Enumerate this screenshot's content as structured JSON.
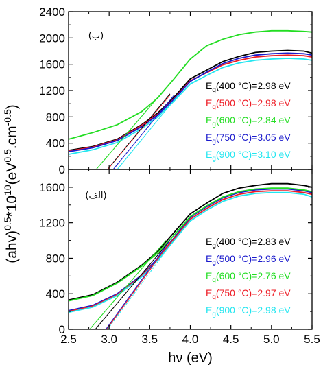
{
  "chart_data": {
    "type": "line",
    "xlabel": "hν (eV)",
    "ylabel": "(ahv)^0.5*10^10",
    "ylabel_right_suffix": "(eV^0.5.cm^-0.5)",
    "panels": [
      {
        "tag": "(ب)",
        "ylim": [
          0,
          2400
        ],
        "xlim": [
          2.5,
          5.5
        ],
        "yticks": [
          0,
          400,
          800,
          1200,
          1600,
          2000,
          2400
        ],
        "series": [
          {
            "name": "Eg(400 °C)=2.98 eV",
            "label_main": "E",
            "label_sub": "g",
            "label_rest": "(400 °C)=2.98 eV",
            "color": "#000000",
            "x": [
              2.5,
              2.8,
              3.1,
              3.4,
              3.6,
              3.8,
              4.0,
              4.2,
              4.4,
              4.6,
              4.8,
              5.0,
              5.2,
              5.4,
              5.5
            ],
            "y": [
              290,
              350,
              460,
              680,
              860,
              1100,
              1380,
              1510,
              1640,
              1720,
              1780,
              1800,
              1810,
              1800,
              1770
            ]
          },
          {
            "name": "Eg(500 °C)=2.98 eV",
            "label_main": "E",
            "label_sub": "g",
            "label_rest": "(500 °C)=2.98 eV",
            "color": "#ee1c25",
            "x": [
              2.5,
              2.8,
              3.1,
              3.4,
              3.6,
              3.8,
              4.0,
              4.2,
              4.4,
              4.6,
              4.8,
              5.0,
              5.2,
              5.4,
              5.5
            ],
            "y": [
              280,
              340,
              450,
              670,
              840,
              1080,
              1350,
              1470,
              1590,
              1660,
              1710,
              1730,
              1740,
              1730,
              1710
            ]
          },
          {
            "name": "Eg(600 °C)=2.84 eV",
            "label_main": "E",
            "label_sub": "g",
            "label_rest": "(600 °C)=2.84 eV",
            "color": "#22dd22",
            "x": [
              2.5,
              2.8,
              3.1,
              3.4,
              3.6,
              3.8,
              4.0,
              4.2,
              4.4,
              4.6,
              4.8,
              5.0,
              5.2,
              5.4,
              5.5
            ],
            "y": [
              460,
              560,
              680,
              880,
              1090,
              1380,
              1680,
              1880,
              1980,
              2050,
              2090,
              2110,
              2110,
              2100,
              2090
            ]
          },
          {
            "name": "Eg(750 °C)=3.05 eV",
            "label_main": "E",
            "label_sub": "g",
            "label_rest": "(750 °C)=3.05 eV",
            "color": "#1a1acc",
            "x": [
              2.5,
              2.8,
              3.1,
              3.4,
              3.6,
              3.8,
              4.0,
              4.2,
              4.4,
              4.6,
              4.8,
              5.0,
              5.2,
              5.4,
              5.5
            ],
            "y": [
              270,
              330,
              440,
              650,
              830,
              1070,
              1340,
              1480,
              1610,
              1690,
              1740,
              1760,
              1770,
              1760,
              1740
            ]
          },
          {
            "name": "Eg(900 °C)=3.10 eV",
            "label_main": "E",
            "label_sub": "g",
            "label_rest": "(900 °C)=3.10 eV",
            "color": "#22e6f0",
            "x": [
              2.5,
              2.8,
              3.1,
              3.4,
              3.6,
              3.8,
              4.0,
              4.2,
              4.4,
              4.6,
              4.8,
              5.0,
              5.2,
              5.4,
              5.5
            ],
            "y": [
              230,
              300,
              410,
              620,
              800,
              1040,
              1300,
              1430,
              1550,
              1620,
              1660,
              1680,
              1690,
              1680,
              1660
            ]
          }
        ],
        "fits": [
          {
            "color": "#000000",
            "x": [
              2.98,
              3.75
            ],
            "y": [
              0,
              1150
            ]
          },
          {
            "color": "#22dd22",
            "x": [
              2.84,
              3.7
            ],
            "y": [
              0,
              1240
            ]
          },
          {
            "color": "#1a1acc",
            "x": [
              3.05,
              3.8
            ],
            "y": [
              0,
              1130
            ]
          },
          {
            "color": "#22e6f0",
            "x": [
              3.1,
              3.85
            ],
            "y": [
              0,
              1130
            ]
          },
          {
            "color": "#ee1c25",
            "x": [
              2.98,
              3.75
            ],
            "y": [
              0,
              1130
            ]
          }
        ]
      },
      {
        "tag": "(الف)",
        "ylim": [
          0,
          1800
        ],
        "xlim": [
          2.5,
          5.5
        ],
        "yticks": [
          0,
          400,
          800,
          1200,
          1600
        ],
        "series": [
          {
            "name": "Eg(400 °C)=2.83 eV",
            "label_main": "E",
            "label_sub": "g",
            "label_rest": "(400 °C)=2.83 eV",
            "color": "#000000",
            "x": [
              2.5,
              2.8,
              3.1,
              3.4,
              3.6,
              3.8,
              4.0,
              4.2,
              4.4,
              4.6,
              4.8,
              5.0,
              5.2,
              5.4,
              5.5
            ],
            "y": [
              330,
              390,
              530,
              720,
              880,
              1090,
              1300,
              1420,
              1530,
              1590,
              1620,
              1640,
              1640,
              1620,
              1600
            ]
          },
          {
            "name": "Eg(500 °C)=2.96 eV",
            "label_main": "E",
            "label_sub": "g",
            "label_rest": "(500 °C)=2.96 eV",
            "color": "#1a1acc",
            "x": [
              2.5,
              2.8,
              3.1,
              3.4,
              3.6,
              3.8,
              4.0,
              4.2,
              4.4,
              4.6,
              4.8,
              5.0,
              5.2,
              5.4,
              5.5
            ],
            "y": [
              210,
              270,
              400,
              610,
              800,
              1030,
              1260,
              1380,
              1480,
              1540,
              1570,
              1580,
              1580,
              1560,
              1540
            ]
          },
          {
            "name": "Eg(600 °C)=2.76 eV",
            "label_main": "E",
            "label_sub": "g",
            "label_rest": "(600 °C)=2.76 eV",
            "color": "#22dd22",
            "x": [
              2.5,
              2.8,
              3.1,
              3.4,
              3.6,
              3.8,
              4.0,
              4.2,
              4.4,
              4.6,
              4.8,
              5.0,
              5.2,
              5.4,
              5.5
            ],
            "y": [
              320,
              380,
              520,
              710,
              860,
              1060,
              1270,
              1390,
              1490,
              1550,
              1580,
              1590,
              1590,
              1570,
              1550
            ]
          },
          {
            "name": "Eg(750 °C)=2.97 eV",
            "label_main": "E",
            "label_sub": "g",
            "label_rest": "(750 °C)=2.97 eV",
            "color": "#ee1c25",
            "x": [
              2.5,
              2.8,
              3.1,
              3.4,
              3.6,
              3.8,
              4.0,
              4.2,
              4.4,
              4.6,
              4.8,
              5.0,
              5.2,
              5.4,
              5.5
            ],
            "y": [
              200,
              260,
              390,
              600,
              790,
              1020,
              1240,
              1360,
              1460,
              1520,
              1550,
              1560,
              1560,
              1540,
              1520
            ]
          },
          {
            "name": "Eg(900 °C)=2.98 eV",
            "label_main": "E",
            "label_sub": "g",
            "label_rest": "(900 °C)=2.98 eV",
            "color": "#22e6f0",
            "x": [
              2.5,
              2.8,
              3.1,
              3.4,
              3.6,
              3.8,
              4.0,
              4.2,
              4.4,
              4.6,
              4.8,
              5.0,
              5.2,
              5.4,
              5.5
            ],
            "y": [
              190,
              250,
              380,
              590,
              780,
              1000,
              1220,
              1340,
              1440,
              1500,
              1530,
              1540,
              1540,
              1520,
              1490
            ]
          }
        ],
        "fits": [
          {
            "color": "#000000",
            "x": [
              2.83,
              3.75
            ],
            "y": [
              0,
              1000
            ]
          },
          {
            "color": "#22dd22",
            "x": [
              2.76,
              3.7
            ],
            "y": [
              0,
              1000
            ]
          },
          {
            "color": "#1a1acc",
            "x": [
              2.96,
              3.75
            ],
            "y": [
              0,
              1000
            ]
          },
          {
            "color": "#ee1c25",
            "x": [
              2.97,
              3.75
            ],
            "y": [
              0,
              980
            ]
          },
          {
            "color": "#22e6f0",
            "x": [
              2.98,
              3.78
            ],
            "y": [
              0,
              980
            ]
          }
        ]
      }
    ],
    "xticks": [
      2.5,
      3.0,
      3.5,
      4.0,
      4.5,
      5.0,
      5.5
    ],
    "xtick_labels": [
      "2.5",
      "3.0",
      "3.5",
      "4.0",
      "4.5",
      "5.0",
      "5.5"
    ]
  }
}
